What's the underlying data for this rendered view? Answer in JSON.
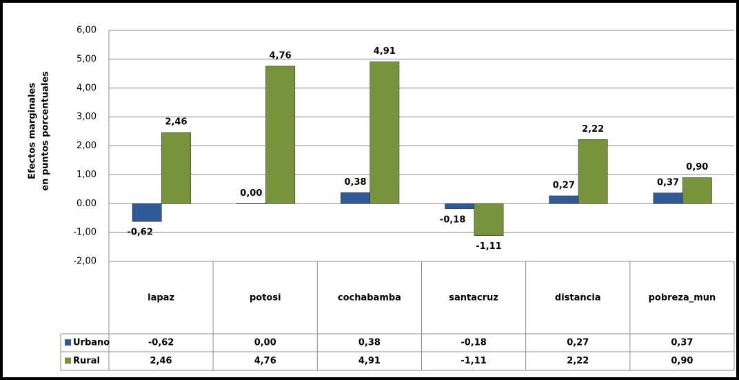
{
  "chart_data": {
    "type": "bar",
    "y_label": [
      "Efectos marginales",
      "en puntos porcentuales"
    ],
    "categories": [
      "lapaz",
      "potosi",
      "cochabamba",
      "santacruz",
      "distancia",
      "pobreza_mun"
    ],
    "series": [
      {
        "name": "Urbano",
        "color": "#2f5a97",
        "values": [
          -0.62,
          0,
          0.38,
          -0.18,
          0.27,
          0.37
        ],
        "value_labels": [
          "-0,62",
          "0,00",
          "0,38",
          "-0,18",
          "0,27",
          "0,37"
        ]
      },
      {
        "name": "Rural",
        "color": "#77933c",
        "values": [
          2.46,
          4.76,
          4.91,
          -1.11,
          2.22,
          0.9
        ],
        "value_labels": [
          "2,46",
          "4,76",
          "4,91",
          "-1,11",
          "2,22",
          "0,90"
        ]
      }
    ],
    "ylim": [
      -2,
      6
    ],
    "yticks": [
      {
        "value": -2,
        "label": "-2,00"
      },
      {
        "value": -1,
        "label": "-1,00"
      },
      {
        "value": 0,
        "label": "0.00"
      },
      {
        "value": 1,
        "label": "1,00"
      },
      {
        "value": 2,
        "label": "2,00"
      },
      {
        "value": 3,
        "label": "3,00"
      },
      {
        "value": 4,
        "label": "4,00"
      },
      {
        "value": 5,
        "label": "5,00"
      },
      {
        "value": 6,
        "label": "6,00"
      }
    ],
    "grid": true
  }
}
